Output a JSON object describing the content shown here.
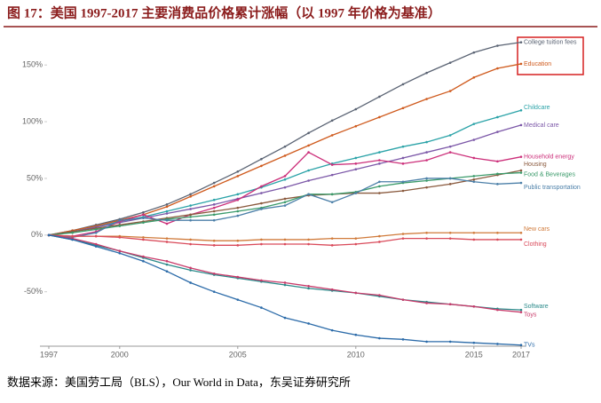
{
  "title": "图 17：美国 1997-2017 主要消费品价格累计涨幅（以 1997 年价格为基准）",
  "source": "数据来源：美国劳工局（BLS），Our World in Data，东吴证券研究所",
  "chart_data": {
    "type": "line",
    "x": [
      1997,
      1998,
      1999,
      2000,
      2001,
      2002,
      2003,
      2004,
      2005,
      2006,
      2007,
      2008,
      2009,
      2010,
      2011,
      2012,
      2013,
      2014,
      2015,
      2016,
      2017
    ],
    "xlim": [
      1997,
      2017
    ],
    "xticks": [
      1997,
      2000,
      2005,
      2010,
      2015,
      2017
    ],
    "ylim": [
      -98,
      176
    ],
    "yticks": [
      {
        "value": -50,
        "label": "-50%"
      },
      {
        "value": 0,
        "label": "0%"
      },
      {
        "value": 50,
        "label": "50%"
      },
      {
        "value": 100,
        "label": "100%"
      },
      {
        "value": 150,
        "label": "150%"
      }
    ],
    "series": [
      {
        "name": "College tuition fees",
        "color": "#5a6373",
        "values": [
          0,
          4,
          9,
          14,
          20,
          27,
          36,
          46,
          56,
          67,
          78,
          90,
          101,
          111,
          122,
          133,
          143,
          152,
          161,
          167,
          170
        ]
      },
      {
        "name": "Education",
        "color": "#cf5a1d",
        "values": [
          0,
          4,
          8,
          13,
          18,
          25,
          34,
          43,
          52,
          61,
          70,
          79,
          88,
          96,
          104,
          112,
          120,
          127,
          139,
          147,
          151
        ]
      },
      {
        "name": "Childcare",
        "color": "#2ba3a8",
        "values": [
          0,
          3,
          7,
          12,
          16,
          21,
          26,
          31,
          36,
          42,
          49,
          57,
          63,
          68,
          73,
          78,
          82,
          88,
          98,
          104,
          110
        ]
      },
      {
        "name": "Medical care",
        "color": "#7c58a8",
        "values": [
          0,
          3,
          7,
          11,
          15,
          19,
          23,
          27,
          32,
          37,
          42,
          48,
          53,
          58,
          63,
          68,
          73,
          78,
          84,
          91,
          97
        ]
      },
      {
        "name": "Household energy",
        "color": "#cc2f7a",
        "values": [
          0,
          -1,
          3,
          12,
          18,
          10,
          18,
          24,
          31,
          43,
          52,
          73,
          62,
          63,
          66,
          63,
          66,
          73,
          68,
          65,
          69
        ]
      },
      {
        "name": "Housing",
        "color": "#8a5a3e",
        "values": [
          0,
          3,
          6,
          9,
          12,
          15,
          18,
          21,
          24,
          28,
          32,
          35,
          36,
          37,
          37,
          39,
          42,
          45,
          49,
          53,
          57
        ]
      },
      {
        "name": "Food & Beverages",
        "color": "#3a9a6a",
        "values": [
          0,
          2,
          5,
          8,
          11,
          14,
          16,
          18,
          21,
          24,
          29,
          36,
          36,
          38,
          43,
          46,
          48,
          50,
          52,
          54,
          55
        ]
      },
      {
        "name": "Public transportation",
        "color": "#4b7fa8",
        "values": [
          0,
          -2,
          2,
          13,
          15,
          13,
          13,
          13,
          17,
          23,
          26,
          36,
          29,
          37,
          47,
          47,
          50,
          50,
          47,
          45,
          46
        ]
      },
      {
        "name": "New cars",
        "color": "#d07a3a",
        "values": [
          0,
          -1,
          -1,
          -1,
          -2,
          -3,
          -4,
          -5,
          -5,
          -4,
          -4,
          -4,
          -3,
          -3,
          -1,
          1,
          2,
          2,
          2,
          2,
          2
        ]
      },
      {
        "name": "Clothing",
        "color": "#d94a5a",
        "values": [
          0,
          -1,
          -1,
          -2,
          -4,
          -6,
          -8,
          -9,
          -9,
          -8,
          -8,
          -8,
          -9,
          -8,
          -6,
          -3,
          -3,
          -3,
          -4,
          -4,
          -4
        ]
      },
      {
        "name": "Software",
        "color": "#2a8a8a",
        "values": [
          0,
          -4,
          -9,
          -14,
          -20,
          -26,
          -31,
          -35,
          -38,
          -41,
          -44,
          -47,
          -49,
          -51,
          -54,
          -57,
          -59,
          -61,
          -63,
          -65,
          -66
        ]
      },
      {
        "name": "Toys",
        "color": "#c83a6a",
        "values": [
          0,
          -3,
          -8,
          -14,
          -19,
          -23,
          -29,
          -34,
          -37,
          -40,
          -42,
          -45,
          -48,
          -51,
          -53,
          -57,
          -60,
          -61,
          -63,
          -66,
          -68
        ]
      },
      {
        "name": "TVs",
        "color": "#2a6aa8",
        "values": [
          0,
          -4,
          -10,
          -16,
          -23,
          -32,
          -42,
          -50,
          -57,
          -64,
          -73,
          -78,
          -84,
          -88,
          -91,
          -92,
          -94,
          -94,
          -95,
          -96,
          -97
        ]
      }
    ]
  }
}
